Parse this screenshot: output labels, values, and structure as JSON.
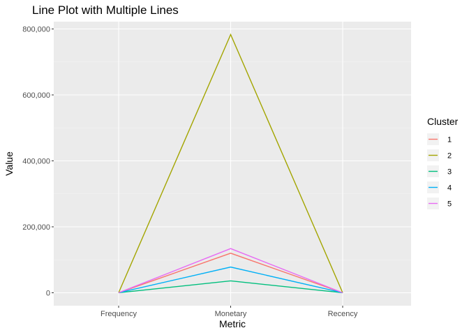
{
  "chart_data": {
    "type": "line",
    "title": "Line Plot with Multiple Lines",
    "xlabel": "Metric",
    "ylabel": "Value",
    "categories": [
      "Frequency",
      "Monetary",
      "Recency"
    ],
    "ylim": [
      -40000,
      825000
    ],
    "yticks": [
      0,
      200000,
      400000,
      600000,
      800000
    ],
    "ytick_labels": [
      "0",
      "200,000",
      "400,000",
      "600,000",
      "800,000"
    ],
    "grid": true,
    "legend": {
      "title": "Cluster",
      "position": "right"
    },
    "series": [
      {
        "name": "1",
        "color": "#F8766D",
        "values": [
          100,
          120000,
          50
        ]
      },
      {
        "name": "2",
        "color": "#A3A500",
        "values": [
          300,
          783000,
          30
        ]
      },
      {
        "name": "3",
        "color": "#00BF7D",
        "values": [
          50,
          36000,
          100
        ]
      },
      {
        "name": "4",
        "color": "#00B0F6",
        "values": [
          80,
          78000,
          60
        ]
      },
      {
        "name": "5",
        "color": "#E76BF3",
        "values": [
          120,
          134000,
          40
        ]
      }
    ]
  }
}
